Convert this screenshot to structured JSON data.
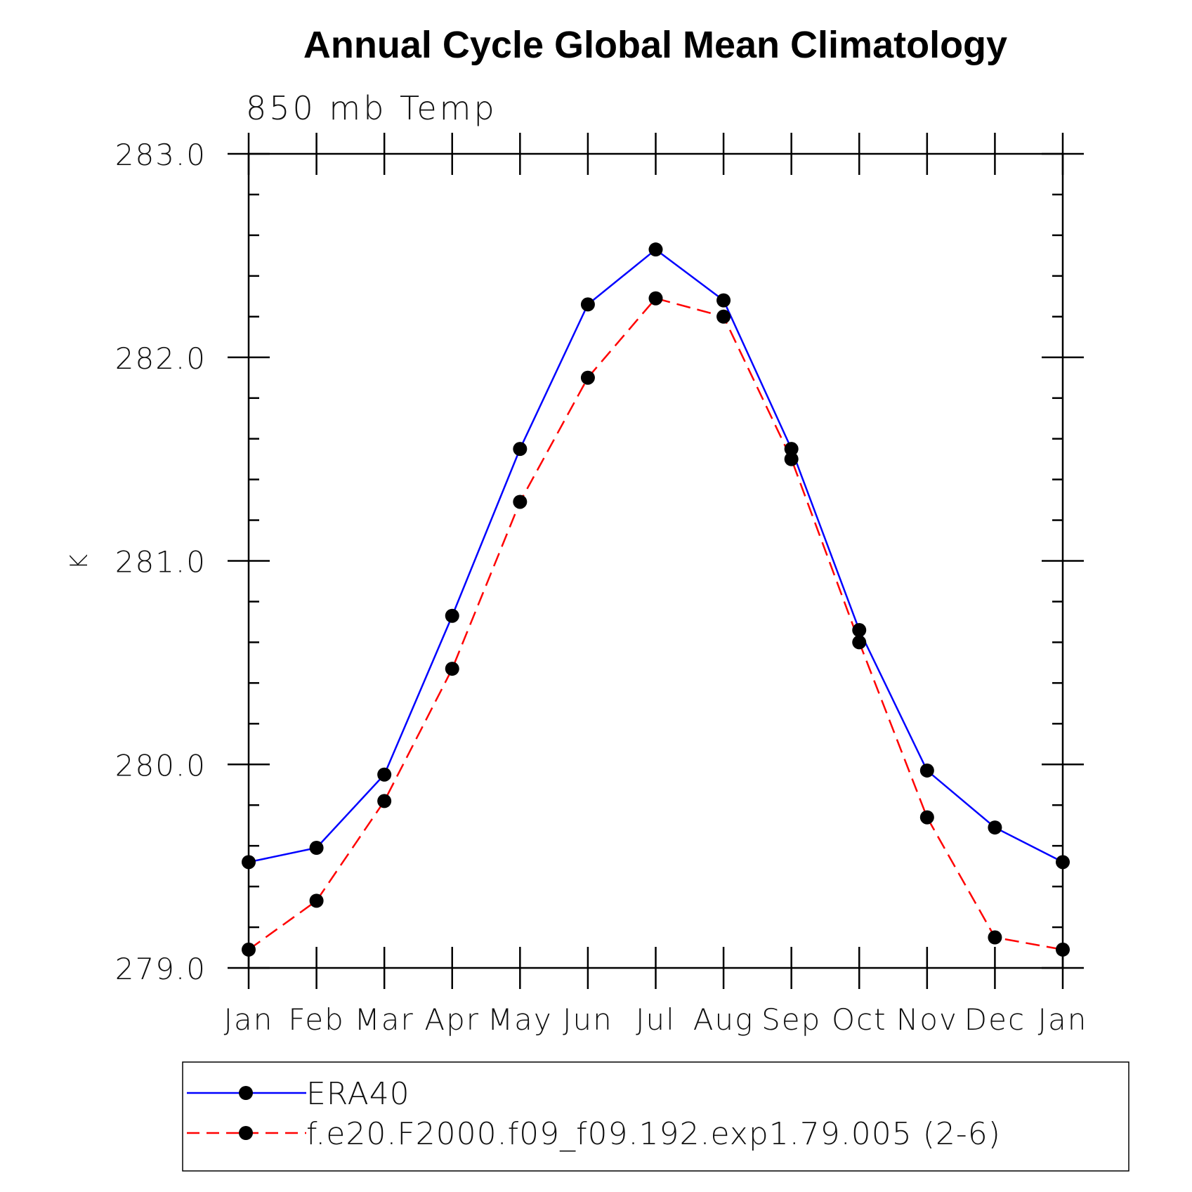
{
  "chart_data": {
    "type": "line",
    "title": "Annual Cycle Global Mean Climatology",
    "subtitle": "850 mb Temp",
    "ylabel": "K",
    "xlabel": "",
    "ylim": [
      279.0,
      283.0
    ],
    "yticks": [
      "279.0",
      "280.0",
      "281.0",
      "282.0",
      "283.0"
    ],
    "categories": [
      "Jan",
      "Feb",
      "Mar",
      "Apr",
      "May",
      "Jun",
      "Jul",
      "Aug",
      "Sep",
      "Oct",
      "Nov",
      "Dec",
      "Jan"
    ],
    "legend_position": "bottom",
    "series": [
      {
        "name": "ERA40",
        "color": "#0000ff",
        "line_style": "solid",
        "marker": "filled-circle",
        "values": [
          279.52,
          279.59,
          279.95,
          280.73,
          281.55,
          282.26,
          282.53,
          282.28,
          281.55,
          280.66,
          279.97,
          279.69,
          279.52
        ]
      },
      {
        "name": "f.e20.F2000.f09_f09.192.exp1.79.005 (2-6)",
        "color": "#ff0000",
        "line_style": "dashed",
        "marker": "filled-circle",
        "values": [
          279.09,
          279.33,
          279.82,
          280.47,
          281.29,
          281.9,
          282.29,
          282.2,
          281.5,
          280.6,
          279.74,
          279.15,
          279.09
        ]
      }
    ]
  }
}
